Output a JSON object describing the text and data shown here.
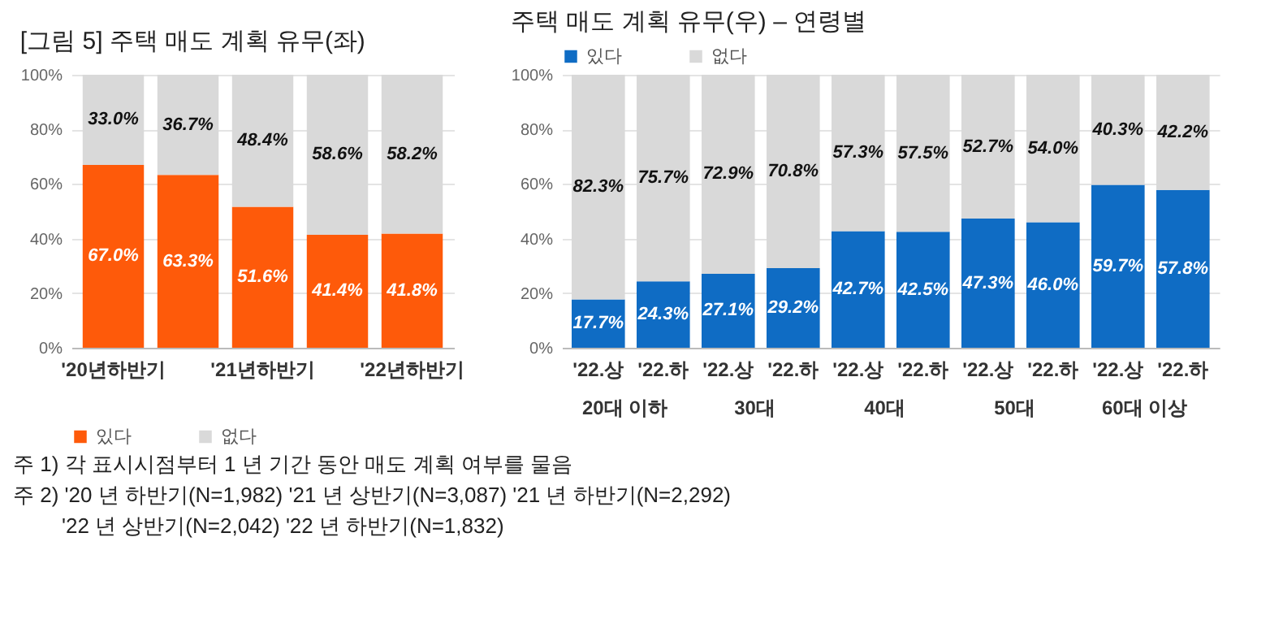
{
  "chart_data": [
    {
      "type": "bar",
      "stacked": true,
      "title": "[그림 5] 주택 매도 계획 유무(좌)",
      "categories": [
        "'20년하반기",
        null,
        "'21년하반기",
        null,
        "'22년하반기"
      ],
      "series": [
        {
          "name": "있다",
          "color": "#fe5a0a",
          "values": [
            67.0,
            63.3,
            51.6,
            41.4,
            41.8
          ],
          "value_labels": [
            "67.0%",
            "63.3%",
            "51.6%",
            "41.4%",
            "41.8%"
          ]
        },
        {
          "name": "없다",
          "color": "#d9d9d9",
          "values": [
            33.0,
            36.7,
            48.4,
            58.6,
            58.2
          ],
          "value_labels": [
            "33.0%",
            "36.7%",
            "48.4%",
            "58.6%",
            "58.2%"
          ]
        }
      ],
      "ylim": [
        0,
        100
      ],
      "yticks": [
        {
          "value": 0,
          "label": "0%"
        },
        {
          "value": 20,
          "label": "20%"
        },
        {
          "value": 40,
          "label": "40%"
        },
        {
          "value": 60,
          "label": "60%"
        },
        {
          "value": 80,
          "label": "80%"
        },
        {
          "value": 100,
          "label": "100%"
        }
      ],
      "grid": "y",
      "legend": "bottom",
      "annotations": [
        "주 1) 각 표시시점부터 1 년 기간 동안 매도 계획 여부를 물음",
        "주 2) '20 년 하반기(N=1,982) '21 년 상반기(N=3,087) '21 년 하반기(N=2,292)",
        "'22 년 상반기(N=2,042) '22 년 하반기(N=1,832)"
      ]
    },
    {
      "type": "bar",
      "stacked": true,
      "title": "주택 매도 계획 유무(우) – 연령별",
      "categories": [
        "'22.상",
        "'22.하",
        "'22.상",
        "'22.하",
        "'22.상",
        "'22.하",
        "'22.상",
        "'22.하",
        "'22.상",
        "'22.하"
      ],
      "series": [
        {
          "name": "있다",
          "color": "#0f6cc4",
          "values": [
            17.7,
            24.3,
            27.1,
            29.2,
            42.7,
            42.5,
            47.3,
            46.0,
            59.7,
            57.8
          ],
          "value_labels": [
            "17.7%",
            "24.3%",
            "27.1%",
            "29.2%",
            "42.7%",
            "42.5%",
            "47.3%",
            "46.0%",
            "59.7%",
            "57.8%"
          ]
        },
        {
          "name": "없다",
          "color": "#d9d9d9",
          "values": [
            82.3,
            75.7,
            72.9,
            70.8,
            57.3,
            57.5,
            52.7,
            54.0,
            40.3,
            42.2
          ],
          "value_labels": [
            "82.3%",
            "75.7%",
            "72.9%",
            "70.8%",
            "57.3%",
            "57.5%",
            "52.7%",
            "54.0%",
            "40.3%",
            "42.2%"
          ]
        }
      ],
      "ylim": [
        0,
        100
      ],
      "yticks": [
        {
          "value": 0,
          "label": "0%"
        },
        {
          "value": 20,
          "label": "20%"
        },
        {
          "value": 40,
          "label": "40%"
        },
        {
          "value": 60,
          "label": "60%"
        },
        {
          "value": 80,
          "label": "80%"
        },
        {
          "value": 100,
          "label": "100%"
        }
      ],
      "grid": "y",
      "legend": "top",
      "annotations": [
        "20대 이하",
        "30대",
        "40대",
        "50대",
        "60대 이상"
      ]
    }
  ]
}
